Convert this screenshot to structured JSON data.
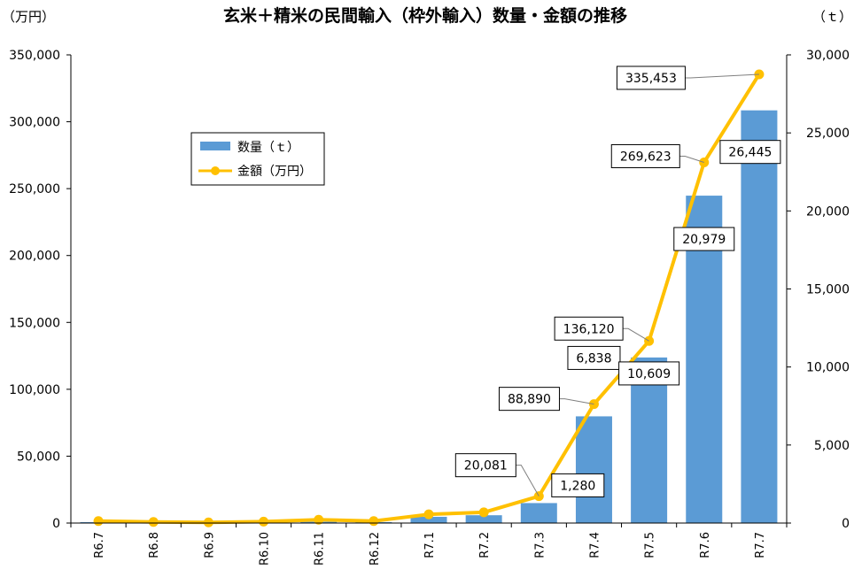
{
  "chart_data": {
    "type": "bar",
    "title": "玄米＋精米の民間輸入（枠外輸入）数量・金額の推移",
    "left_axis_unit": "（万円）",
    "right_axis_unit": "（ｔ）",
    "categories": [
      "R6.7",
      "R6.8",
      "R6.9",
      "R6.10",
      "R6.11",
      "R6.12",
      "R7.1",
      "R7.2",
      "R7.3",
      "R7.4",
      "R7.5",
      "R7.6",
      "R7.7"
    ],
    "series": [
      {
        "name": "数量（ｔ）",
        "type": "bar",
        "axis": "right",
        "color": "#5B9BD5",
        "values": [
          60,
          30,
          20,
          50,
          80,
          60,
          400,
          500,
          1280,
          6838,
          10609,
          20979,
          26445
        ]
      },
      {
        "name": "金額（万円）",
        "type": "line",
        "axis": "left",
        "color": "#FFC000",
        "values": [
          1500,
          800,
          500,
          1100,
          2500,
          1500,
          6500,
          8000,
          20081,
          88890,
          136120,
          269623,
          335453
        ]
      }
    ],
    "data_labels": [
      {
        "series": 0,
        "index": 8,
        "text": "1,280"
      },
      {
        "series": 0,
        "index": 9,
        "text": "6,838"
      },
      {
        "series": 0,
        "index": 10,
        "text": "10,609"
      },
      {
        "series": 0,
        "index": 11,
        "text": "20,979"
      },
      {
        "series": 0,
        "index": 12,
        "text": "26,445"
      },
      {
        "series": 1,
        "index": 8,
        "text": "20,081"
      },
      {
        "series": 1,
        "index": 9,
        "text": "88,890"
      },
      {
        "series": 1,
        "index": 10,
        "text": "136,120"
      },
      {
        "series": 1,
        "index": 11,
        "text": "269,623"
      },
      {
        "series": 1,
        "index": 12,
        "text": "335,453"
      }
    ],
    "left_axis": {
      "min": 0,
      "max": 350000,
      "ticks": [
        "0",
        "50,000",
        "100,000",
        "150,000",
        "200,000",
        "250,000",
        "300,000",
        "350,000"
      ]
    },
    "right_axis": {
      "min": 0,
      "max": 30000,
      "ticks": [
        "0",
        "5,000",
        "10,000",
        "15,000",
        "20,000",
        "25,000",
        "30,000"
      ]
    },
    "grid": false,
    "legend_position": "upper-left"
  }
}
